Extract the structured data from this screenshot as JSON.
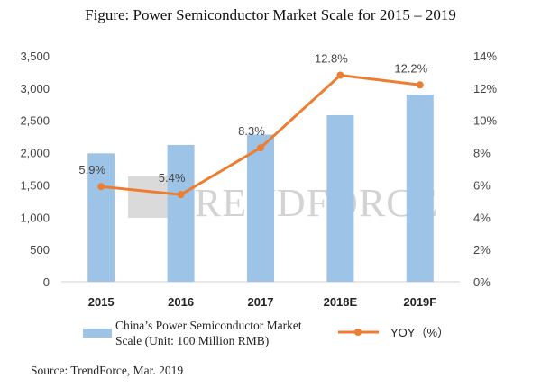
{
  "chart_data": {
    "type": "bar",
    "title": "Figure: Power Semiconductor Market Scale for 2015 – 2019",
    "categories": [
      "2015",
      "2016",
      "2017",
      "2018E",
      "2019F"
    ],
    "series": [
      {
        "name": "China’s Power Semiconductor Market Scale (Unit: 100 Million RMB)",
        "legend_lines": [
          "China’s Power Semiconductor Market",
          "Scale (Unit: 100 Million RMB)"
        ],
        "type": "bar",
        "axis": "left",
        "color": "#9dc3e6",
        "values": [
          1990,
          2120,
          2280,
          2580,
          2900
        ]
      },
      {
        "name": "YOY（%）",
        "type": "line",
        "axis": "right",
        "color": "#ed7d31",
        "values": [
          5.9,
          5.4,
          8.3,
          12.8,
          12.2
        ],
        "labels": [
          "5.9%",
          "5.4%",
          "8.3%",
          "12.8%",
          "12.2%"
        ]
      }
    ],
    "y_left": {
      "min": 0,
      "max": 3500,
      "ticks": [
        "0",
        "500",
        "1,000",
        "1,500",
        "2,000",
        "2,500",
        "3,000",
        "3,500"
      ]
    },
    "y_right": {
      "min": 0,
      "max": 14,
      "ticks": [
        "0%",
        "2%",
        "4%",
        "6%",
        "8%",
        "10%",
        "12%",
        "14%"
      ]
    },
    "grid": false,
    "legend_position": "bottom",
    "watermark": "TRENDFORCE",
    "source": "Source: TrendForce, Mar. 2019"
  }
}
